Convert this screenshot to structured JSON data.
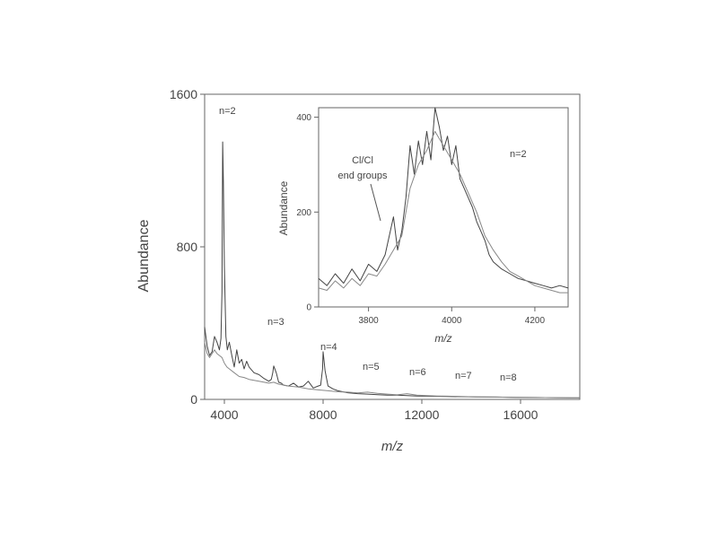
{
  "chart_data": [
    {
      "type": "line",
      "xlabel": "m/z",
      "ylabel": "Abundance",
      "xlim": [
        3200,
        18400
      ],
      "ylim": [
        0,
        1600
      ],
      "xticks": [
        4000,
        8000,
        12000,
        16000
      ],
      "xtick_labels": [
        "4000",
        "8000",
        "12000",
        "16000"
      ],
      "yticks": [
        0,
        800,
        1600
      ],
      "ytick_labels": [
        "0",
        "800",
        "1600"
      ],
      "series": [
        {
          "x": [
            3200,
            3300,
            3400,
            3500,
            3600,
            3700,
            3800,
            3860,
            3900,
            3930,
            3960,
            4000,
            4060,
            4120,
            4200,
            4300,
            4400,
            4500,
            4600,
            4700,
            4800,
            4900,
            5000,
            5200,
            5400,
            5600,
            5800,
            5900,
            5960,
            6000,
            6100,
            6200,
            6300,
            6400,
            6600,
            6800,
            7000,
            7200,
            7400,
            7600,
            7800,
            7900,
            7980,
            8000,
            8080,
            8200,
            8400,
            8600,
            8800,
            9000,
            9400,
            9800,
            10200,
            10600,
            11000,
            11400,
            11800,
            12200,
            12600,
            13000,
            13600,
            14200,
            15000,
            15800,
            16600,
            17400,
            18400
          ],
          "values": [
            380,
            280,
            230,
            250,
            330,
            300,
            260,
            320,
            560,
            1350,
            1140,
            700,
            330,
            260,
            300,
            230,
            170,
            260,
            190,
            210,
            160,
            200,
            170,
            140,
            130,
            110,
            95,
            105,
            140,
            175,
            140,
            90,
            85,
            75,
            70,
            85,
            65,
            70,
            95,
            60,
            70,
            75,
            160,
            250,
            150,
            70,
            55,
            45,
            40,
            35,
            30,
            28,
            25,
            22,
            22,
            20,
            18,
            17,
            16,
            15,
            14,
            13,
            12,
            11,
            10,
            9,
            8
          ]
        },
        {
          "x": [
            3200,
            3300,
            3400,
            3500,
            3600,
            3700,
            3800,
            3900,
            4000,
            4100,
            4200,
            4400,
            4600,
            4800,
            5000,
            5400,
            5800,
            6000,
            6200,
            6600,
            7000,
            7400,
            7800,
            8200,
            8600,
            9000,
            9400,
            9800,
            10200,
            10600,
            11000,
            11400,
            11800,
            12200,
            12600,
            13000,
            13600,
            14200,
            15000,
            15800,
            16600,
            17400,
            18400
          ],
          "values": [
            300,
            240,
            220,
            240,
            260,
            240,
            230,
            220,
            190,
            170,
            160,
            140,
            120,
            115,
            105,
            95,
            85,
            90,
            80,
            70,
            65,
            55,
            50,
            45,
            40,
            38,
            34,
            38,
            32,
            28,
            24,
            30,
            22,
            20,
            18,
            17,
            15,
            13,
            12,
            11,
            10,
            9,
            8
          ]
        }
      ],
      "annotations": [
        "n=2",
        "n=3",
        "n=4",
        "n=5",
        "n=6",
        "n=7",
        "n=8"
      ]
    },
    {
      "type": "line",
      "xlabel": "m/z",
      "ylabel": "Abundance",
      "xlim": [
        3680,
        4280
      ],
      "ylim": [
        0,
        420
      ],
      "xticks": [
        3800,
        4000,
        4200
      ],
      "xtick_labels": [
        "3800",
        "4000",
        "4200"
      ],
      "yticks": [
        0,
        200,
        400
      ],
      "ytick_labels": [
        "0",
        "200",
        "400"
      ],
      "series": [
        {
          "x": [
            3680,
            3700,
            3720,
            3740,
            3760,
            3780,
            3800,
            3820,
            3840,
            3860,
            3870,
            3880,
            3890,
            3900,
            3910,
            3920,
            3930,
            3940,
            3950,
            3960,
            3970,
            3980,
            3990,
            4000,
            4010,
            4020,
            4030,
            4040,
            4050,
            4060,
            4070,
            4080,
            4090,
            4100,
            4120,
            4140,
            4160,
            4180,
            4200,
            4220,
            4240,
            4260,
            4280
          ],
          "values": [
            60,
            45,
            70,
            50,
            80,
            55,
            90,
            75,
            110,
            190,
            120,
            160,
            230,
            340,
            280,
            350,
            300,
            370,
            310,
            420,
            380,
            330,
            360,
            300,
            340,
            270,
            250,
            230,
            210,
            180,
            160,
            140,
            110,
            95,
            80,
            70,
            60,
            55,
            50,
            45,
            40,
            45,
            40
          ]
        },
        {
          "x": [
            3680,
            3700,
            3720,
            3740,
            3760,
            3780,
            3800,
            3820,
            3840,
            3860,
            3880,
            3900,
            3920,
            3940,
            3960,
            3980,
            4000,
            4020,
            4040,
            4060,
            4080,
            4100,
            4120,
            4140,
            4160,
            4180,
            4200,
            4220,
            4240,
            4260,
            4280
          ],
          "values": [
            40,
            35,
            55,
            40,
            60,
            45,
            70,
            65,
            90,
            120,
            150,
            250,
            300,
            330,
            370,
            340,
            310,
            280,
            240,
            200,
            150,
            120,
            95,
            75,
            65,
            55,
            45,
            40,
            35,
            30,
            30
          ]
        }
      ],
      "annotations": [
        "n=2",
        "Cl/Cl",
        "end groups"
      ]
    }
  ]
}
